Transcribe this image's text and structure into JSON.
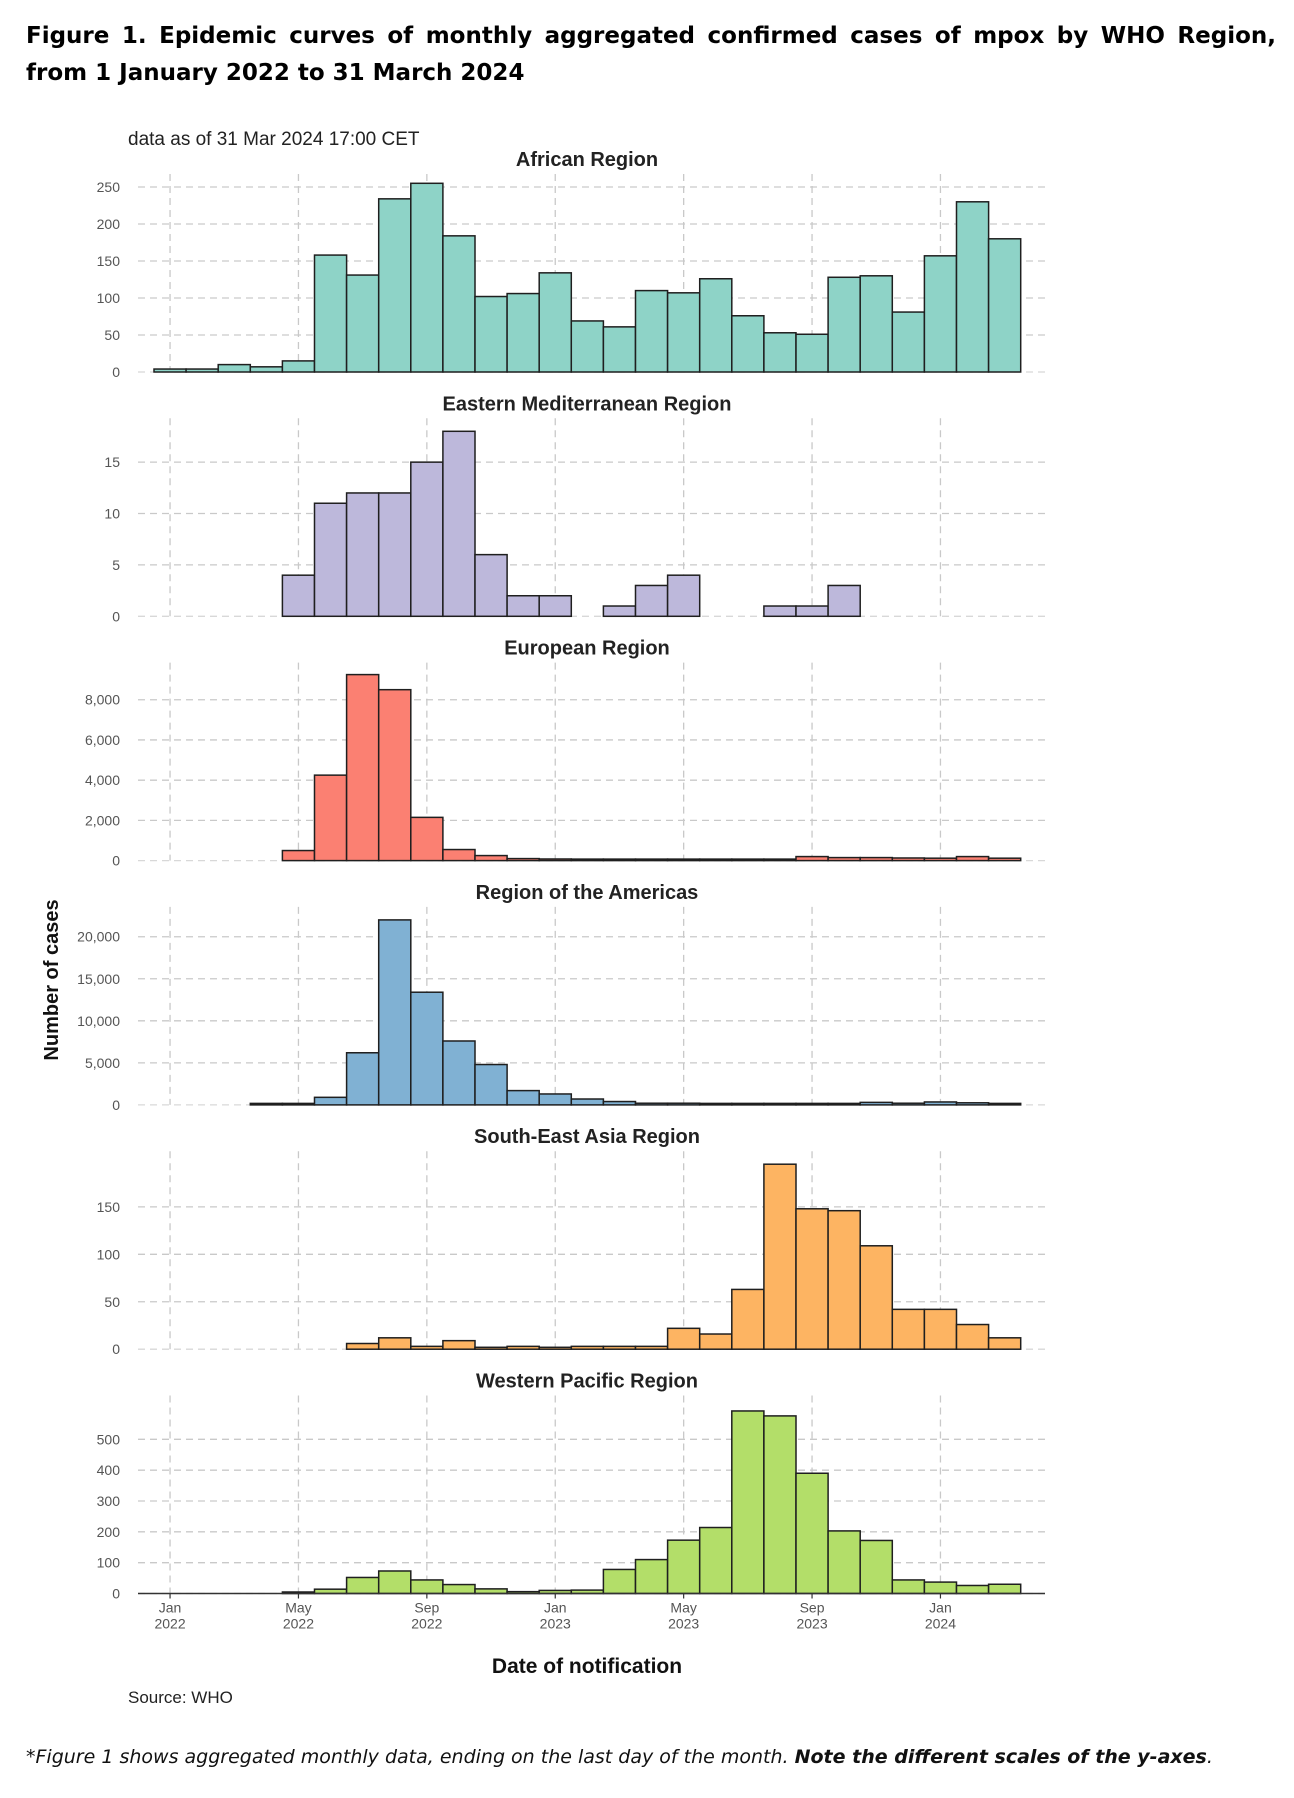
{
  "figure": {
    "title": "Figure 1. Epidemic curves of monthly aggregated confirmed cases of mpox by WHO Region, from 1 January 2022 to 31 March 2024",
    "subtitle": "data as of 31 Mar 2024 17:00 CET",
    "source": "Source: WHO",
    "footnote_italic": "*Figure 1 shows aggregated monthly data, ending on the last day of the month. ",
    "footnote_bold": "Note the different scales of the y-axes",
    "footnote_end": "."
  },
  "chart_data": {
    "type": "bar",
    "xlabel": "Date of notification",
    "ylabel": "Number of cases",
    "months": [
      "Jan 2022",
      "Feb 2022",
      "Mar 2022",
      "Apr 2022",
      "May 2022",
      "Jun 2022",
      "Jul 2022",
      "Aug 2022",
      "Sep 2022",
      "Oct 2022",
      "Nov 2022",
      "Dec 2022",
      "Jan 2023",
      "Feb 2023",
      "Mar 2023",
      "Apr 2023",
      "May 2023",
      "Jun 2023",
      "Jul 2023",
      "Aug 2023",
      "Sep 2023",
      "Oct 2023",
      "Nov 2023",
      "Dec 2023",
      "Jan 2024",
      "Feb 2024",
      "Mar 2024"
    ],
    "x_ticks": [
      {
        "month_index": 0,
        "line1": "Jan",
        "line2": "2022"
      },
      {
        "month_index": 4,
        "line1": "May",
        "line2": "2022"
      },
      {
        "month_index": 8,
        "line1": "Sep",
        "line2": "2022"
      },
      {
        "month_index": 12,
        "line1": "Jan",
        "line2": "2023"
      },
      {
        "month_index": 16,
        "line1": "May",
        "line2": "2023"
      },
      {
        "month_index": 20,
        "line1": "Sep",
        "line2": "2023"
      },
      {
        "month_index": 24,
        "line1": "Jan",
        "line2": "2024"
      }
    ],
    "panels": [
      {
        "title": "African Region",
        "color": "#8ed3c7",
        "ylim": [
          0,
          250
        ],
        "y_ticks": [
          0,
          50,
          100,
          150,
          200,
          250
        ],
        "y_tick_labels": [
          "0",
          "50",
          "100",
          "150",
          "200",
          "250"
        ],
        "values": [
          4,
          4,
          10,
          7,
          15,
          158,
          131,
          234,
          255,
          184,
          102,
          106,
          134,
          69,
          61,
          110,
          107,
          126,
          76,
          53,
          51,
          128,
          130,
          81,
          157,
          230,
          180
        ]
      },
      {
        "title": "Eastern Mediterranean Region",
        "color": "#bdb8db",
        "ylim": [
          0,
          18
        ],
        "y_ticks": [
          0,
          5,
          10,
          15
        ],
        "y_tick_labels": [
          "0",
          "5",
          "10",
          "15"
        ],
        "values": [
          0,
          0,
          0,
          0,
          4,
          11,
          12,
          12,
          15,
          18,
          6,
          2,
          2,
          0,
          1,
          3,
          4,
          0,
          0,
          1,
          1,
          3,
          0,
          0,
          0,
          0,
          0
        ]
      },
      {
        "title": "European Region",
        "color": "#fb8072",
        "ylim": [
          0,
          9200
        ],
        "y_ticks": [
          0,
          2000,
          4000,
          6000,
          8000
        ],
        "y_tick_labels": [
          "0",
          "2,000",
          "4,000",
          "6,000",
          "8,000"
        ],
        "values": [
          0,
          0,
          0,
          0,
          500,
          4250,
          9250,
          8500,
          2150,
          550,
          250,
          100,
          80,
          40,
          30,
          30,
          20,
          20,
          50,
          40,
          200,
          150,
          150,
          130,
          120,
          200,
          120
        ]
      },
      {
        "title": "Region of the Americas",
        "color": "#80b1d3",
        "ylim": [
          0,
          22000
        ],
        "y_ticks": [
          0,
          5000,
          10000,
          15000,
          20000
        ],
        "y_tick_labels": [
          "0",
          "5,000",
          "10,000",
          "15,000",
          "20,000"
        ],
        "values": [
          0,
          0,
          0,
          10,
          150,
          900,
          6200,
          22000,
          13400,
          7600,
          4800,
          1700,
          1300,
          700,
          400,
          200,
          200,
          150,
          150,
          150,
          150,
          150,
          300,
          200,
          350,
          250,
          150
        ]
      },
      {
        "title": "South-East Asia Region",
        "color": "#fdb462",
        "ylim": [
          0,
          195
        ],
        "y_ticks": [
          0,
          50,
          100,
          150
        ],
        "y_tick_labels": [
          "0",
          "50",
          "100",
          "150"
        ],
        "values": [
          0,
          0,
          0,
          0,
          0,
          0,
          6,
          12,
          3,
          9,
          2,
          3,
          2,
          3,
          3,
          3,
          22,
          16,
          63,
          195,
          148,
          146,
          109,
          42,
          42,
          26,
          12
        ]
      },
      {
        "title": "Western Pacific Region",
        "color": "#b3de69",
        "ylim": [
          0,
          600
        ],
        "y_ticks": [
          0,
          100,
          200,
          300,
          400,
          500
        ],
        "y_tick_labels": [
          "0",
          "100",
          "200",
          "300",
          "400",
          "500"
        ],
        "values": [
          0,
          0,
          0,
          0,
          3,
          14,
          52,
          73,
          44,
          29,
          15,
          6,
          10,
          11,
          78,
          110,
          173,
          214,
          592,
          576,
          390,
          203,
          172,
          44,
          37,
          26,
          30
        ]
      }
    ]
  }
}
